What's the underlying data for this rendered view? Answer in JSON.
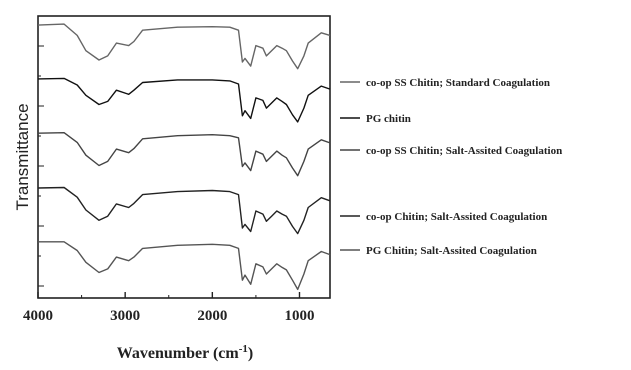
{
  "chart_data": {
    "type": "line",
    "title": "",
    "xlabel": "Wavenumber (cm",
    "xlabel_sup": "-1",
    "xlabel_close": ")",
    "ylabel": "Transmittance",
    "xlim": [
      4000,
      650
    ],
    "x_reversed": true,
    "x_ticks": [
      "4000",
      "3000",
      "2000",
      "1000"
    ],
    "x_tick_values": [
      4000,
      3000,
      2000,
      1000
    ],
    "grid": false,
    "legend_placement": "right",
    "y_units": "arbitrary (stacked, offset traces)",
    "series": [
      {
        "name": "co-op SS Chitin; Standard Coagulation",
        "color": "#666666",
        "offset": 4,
        "points": [
          [
            4000,
            0.9
          ],
          [
            3700,
            0.92
          ],
          [
            3550,
            0.7
          ],
          [
            3450,
            0.4
          ],
          [
            3300,
            0.22
          ],
          [
            3200,
            0.3
          ],
          [
            3100,
            0.55
          ],
          [
            2960,
            0.5
          ],
          [
            2900,
            0.58
          ],
          [
            2800,
            0.8
          ],
          [
            2400,
            0.86
          ],
          [
            2000,
            0.87
          ],
          [
            1800,
            0.86
          ],
          [
            1700,
            0.8
          ],
          [
            1655,
            0.18
          ],
          [
            1625,
            0.25
          ],
          [
            1560,
            0.1
          ],
          [
            1500,
            0.5
          ],
          [
            1420,
            0.45
          ],
          [
            1380,
            0.3
          ],
          [
            1320,
            0.4
          ],
          [
            1260,
            0.5
          ],
          [
            1200,
            0.45
          ],
          [
            1150,
            0.4
          ],
          [
            1080,
            0.2
          ],
          [
            1020,
            0.05
          ],
          [
            950,
            0.3
          ],
          [
            900,
            0.55
          ],
          [
            750,
            0.75
          ],
          [
            650,
            0.7
          ]
        ]
      },
      {
        "name": "PG chitin",
        "color": "#111111",
        "offset": 3,
        "points": [
          [
            4000,
            0.92
          ],
          [
            3700,
            0.93
          ],
          [
            3550,
            0.8
          ],
          [
            3450,
            0.6
          ],
          [
            3300,
            0.42
          ],
          [
            3200,
            0.48
          ],
          [
            3100,
            0.7
          ],
          [
            2960,
            0.62
          ],
          [
            2900,
            0.7
          ],
          [
            2800,
            0.85
          ],
          [
            2400,
            0.9
          ],
          [
            2000,
            0.9
          ],
          [
            1800,
            0.88
          ],
          [
            1700,
            0.82
          ],
          [
            1655,
            0.2
          ],
          [
            1625,
            0.3
          ],
          [
            1560,
            0.15
          ],
          [
            1500,
            0.55
          ],
          [
            1420,
            0.5
          ],
          [
            1380,
            0.35
          ],
          [
            1320,
            0.45
          ],
          [
            1260,
            0.55
          ],
          [
            1200,
            0.48
          ],
          [
            1150,
            0.42
          ],
          [
            1080,
            0.22
          ],
          [
            1020,
            0.08
          ],
          [
            950,
            0.35
          ],
          [
            900,
            0.6
          ],
          [
            750,
            0.78
          ],
          [
            650,
            0.72
          ]
        ]
      },
      {
        "name": "co-op SS Chitin; Salt-Assited Coagulation",
        "color": "#444444",
        "offset": 2,
        "points": [
          [
            4000,
            0.93
          ],
          [
            3700,
            0.94
          ],
          [
            3550,
            0.75
          ],
          [
            3450,
            0.5
          ],
          [
            3300,
            0.3
          ],
          [
            3200,
            0.38
          ],
          [
            3100,
            0.62
          ],
          [
            2960,
            0.55
          ],
          [
            2900,
            0.63
          ],
          [
            2800,
            0.82
          ],
          [
            2400,
            0.88
          ],
          [
            2000,
            0.9
          ],
          [
            1800,
            0.88
          ],
          [
            1700,
            0.84
          ],
          [
            1655,
            0.28
          ],
          [
            1625,
            0.35
          ],
          [
            1560,
            0.2
          ],
          [
            1500,
            0.58
          ],
          [
            1420,
            0.52
          ],
          [
            1380,
            0.38
          ],
          [
            1320,
            0.48
          ],
          [
            1260,
            0.58
          ],
          [
            1200,
            0.5
          ],
          [
            1150,
            0.45
          ],
          [
            1080,
            0.25
          ],
          [
            1020,
            0.1
          ],
          [
            950,
            0.38
          ],
          [
            900,
            0.62
          ],
          [
            750,
            0.8
          ],
          [
            650,
            0.74
          ]
        ]
      },
      {
        "name": "co-op Chitin; Salt-Assited Coagulation",
        "color": "#222222",
        "offset": 1,
        "points": [
          [
            4000,
            0.93
          ],
          [
            3700,
            0.94
          ],
          [
            3550,
            0.75
          ],
          [
            3450,
            0.5
          ],
          [
            3300,
            0.3
          ],
          [
            3200,
            0.38
          ],
          [
            3100,
            0.62
          ],
          [
            2960,
            0.55
          ],
          [
            2900,
            0.63
          ],
          [
            2800,
            0.8
          ],
          [
            2400,
            0.86
          ],
          [
            2000,
            0.88
          ],
          [
            1800,
            0.86
          ],
          [
            1700,
            0.8
          ],
          [
            1655,
            0.15
          ],
          [
            1625,
            0.22
          ],
          [
            1560,
            0.08
          ],
          [
            1500,
            0.48
          ],
          [
            1420,
            0.42
          ],
          [
            1380,
            0.28
          ],
          [
            1320,
            0.38
          ],
          [
            1260,
            0.48
          ],
          [
            1200,
            0.42
          ],
          [
            1150,
            0.38
          ],
          [
            1080,
            0.18
          ],
          [
            1020,
            0.04
          ],
          [
            950,
            0.3
          ],
          [
            900,
            0.55
          ],
          [
            750,
            0.74
          ],
          [
            650,
            0.68
          ]
        ]
      },
      {
        "name": "PG Chitin; Salt-Assited Coagulation",
        "color": "#555555",
        "offset": 0,
        "points": [
          [
            4000,
            0.95
          ],
          [
            3700,
            0.95
          ],
          [
            3550,
            0.78
          ],
          [
            3450,
            0.55
          ],
          [
            3300,
            0.35
          ],
          [
            3200,
            0.42
          ],
          [
            3100,
            0.65
          ],
          [
            2960,
            0.58
          ],
          [
            2900,
            0.65
          ],
          [
            2800,
            0.82
          ],
          [
            2400,
            0.88
          ],
          [
            2000,
            0.9
          ],
          [
            1800,
            0.88
          ],
          [
            1700,
            0.82
          ],
          [
            1655,
            0.2
          ],
          [
            1625,
            0.3
          ],
          [
            1560,
            0.12
          ],
          [
            1500,
            0.52
          ],
          [
            1420,
            0.46
          ],
          [
            1380,
            0.32
          ],
          [
            1320,
            0.42
          ],
          [
            1260,
            0.52
          ],
          [
            1200,
            0.45
          ],
          [
            1150,
            0.4
          ],
          [
            1080,
            0.2
          ],
          [
            1020,
            0.02
          ],
          [
            950,
            0.32
          ],
          [
            900,
            0.58
          ],
          [
            750,
            0.76
          ],
          [
            650,
            0.7
          ]
        ]
      }
    ]
  }
}
